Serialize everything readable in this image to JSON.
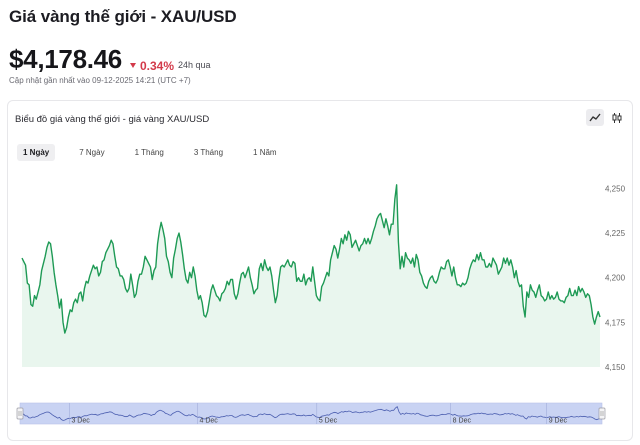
{
  "page": {
    "title": "Giá vàng thế giới - XAU/USD",
    "price": "$4,178.46",
    "change": "0.34%",
    "period": "24h qua",
    "updated": "Cập nhật gần nhất vào 09-12-2025 14:21 (UTC +7)"
  },
  "card": {
    "title": "Biểu đồ giá vàng thế giới - giá vàng XAU/USD",
    "chart_type_buttons": [
      {
        "icon": "line-chart-icon",
        "active": true
      },
      {
        "icon": "candlestick-icon",
        "active": false
      }
    ],
    "tabs": [
      {
        "label": "1 Ngày",
        "active": true
      },
      {
        "label": "7 Ngày",
        "active": false
      },
      {
        "label": "1 Tháng",
        "active": false
      },
      {
        "label": "3 Tháng",
        "active": false
      },
      {
        "label": "1 Năm",
        "active": false
      }
    ]
  },
  "colors": {
    "line": "#1e9a55",
    "area": "#e9f6ee",
    "down": "#d33a4a",
    "navigator_fill": "#c9d3f3",
    "navigator_line": "#4c5fb0"
  },
  "chart_data": {
    "type": "area",
    "title": "",
    "xlabel": "",
    "ylabel": "",
    "ylim": [
      4150,
      4262
    ],
    "yticks": [
      4150,
      4175,
      4200,
      4225,
      4250
    ],
    "ytick_labels": [
      "4,150",
      "4,175",
      "4,200",
      "4,225",
      "4,250"
    ],
    "grid": false,
    "navigator": {
      "xtick_labels": [
        "3 Dec",
        "4 Dec",
        "5 Dec",
        "8 Dec",
        "9 Dec"
      ],
      "xtick_positions": [
        0.085,
        0.305,
        0.51,
        0.74,
        0.905
      ]
    },
    "series": [
      {
        "values": [
          4211,
          4209,
          4207,
          4197,
          4196,
          4185,
          4184,
          4190,
          4188,
          4192,
          4196,
          4204,
          4208,
          4212,
          4217,
          4220,
          4219,
          4212,
          4203,
          4196,
          4190,
          4183,
          4188,
          4175,
          4169,
          4172,
          4178,
          4182,
          4181,
          4186,
          4188,
          4186,
          4191,
          4192,
          4187,
          4194,
          4198,
          4197,
          4201,
          4204,
          4207,
          4205,
          4206,
          4201,
          4203,
          4209,
          4210,
          4214,
          4216,
          4218,
          4221,
          4219,
          4212,
          4206,
          4205,
          4201,
          4201,
          4199,
          4194,
          4192,
          4194,
          4202,
          4196,
          4189,
          4191,
          4198,
          4202,
          4202,
          4206,
          4212,
          4210,
          4208,
          4206,
          4199,
          4204,
          4206,
          4219,
          4226,
          4231,
          4227,
          4222,
          4212,
          4209,
          4203,
          4200,
          4211,
          4216,
          4222,
          4225,
          4220,
          4213,
          4205,
          4199,
          4197,
          4203,
          4200,
          4206,
          4201,
          4193,
          4188,
          4190,
          4186,
          4179,
          4178,
          4181,
          4187,
          4193,
          4196,
          4193,
          4190,
          4189,
          4187,
          4191,
          4192,
          4194,
          4198,
          4196,
          4199,
          4199,
          4191,
          4188,
          4191,
          4197,
          4202,
          4203,
          4200,
          4203,
          4206,
          4200,
          4196,
          4191,
          4193,
          4194,
          4205,
          4208,
          4204,
          4210,
          4206,
          4204,
          4206,
          4201,
          4193,
          4186,
          4190,
          4199,
          4206,
          4207,
          4206,
          4208,
          4210,
          4207,
          4206,
          4209,
          4208,
          4198,
          4200,
          4198,
          4198,
          4202,
          4196,
          4199,
          4200,
          4198,
          4206,
          4198,
          4190,
          4188,
          4187,
          4195,
          4197,
          4200,
          4203,
          4201,
          4210,
          4214,
          4218,
          4216,
          4211,
          4216,
          4222,
          4219,
          4224,
          4221,
          4226,
          4224,
          4217,
          4219,
          4221,
          4218,
          4215,
          4218,
          4219,
          4222,
          4219,
          4222,
          4219,
          4222,
          4226,
          4229,
          4233,
          4235,
          4236,
          4232,
          4228,
          4233,
          4229,
          4224,
          4230,
          4230,
          4244,
          4252,
          4220,
          4205,
          4212,
          4206,
          4214,
          4211,
          4210,
          4208,
          4211,
          4206,
          4213,
          4210,
          4203,
          4201,
          4197,
          4195,
          4194,
          4198,
          4200,
          4201,
          4198,
          4197,
          4199,
          4203,
          4206,
          4205,
          4205,
          4209,
          4210,
          4206,
          4201,
          4206,
          4200,
          4196,
          4196,
          4195,
          4197,
          4196,
          4197,
          4200,
          4205,
          4208,
          4210,
          4209,
          4213,
          4210,
          4214,
          4210,
          4210,
          4206,
          4206,
          4208,
          4206,
          4211,
          4209,
          4207,
          4202,
          4204,
          4206,
          4211,
          4208,
          4211,
          4207,
          4210,
          4206,
          4200,
          4204,
          4198,
          4195,
          4196,
          4184,
          4178,
          4192,
          4189,
          4196,
          4193,
          4192,
          4189,
          4193,
          4196,
          4190,
          4189,
          4187,
          4188,
          4192,
          4188,
          4190,
          4188,
          4189,
          4192,
          4188,
          4187,
          4187,
          4186,
          4189,
          4190,
          4194,
          4190,
          4190,
          4193,
          4190,
          4195,
          4192,
          4194,
          4192,
          4189,
          4191,
          4190,
          4185,
          4178,
          4174,
          4178,
          4181,
          4178
        ]
      }
    ]
  }
}
